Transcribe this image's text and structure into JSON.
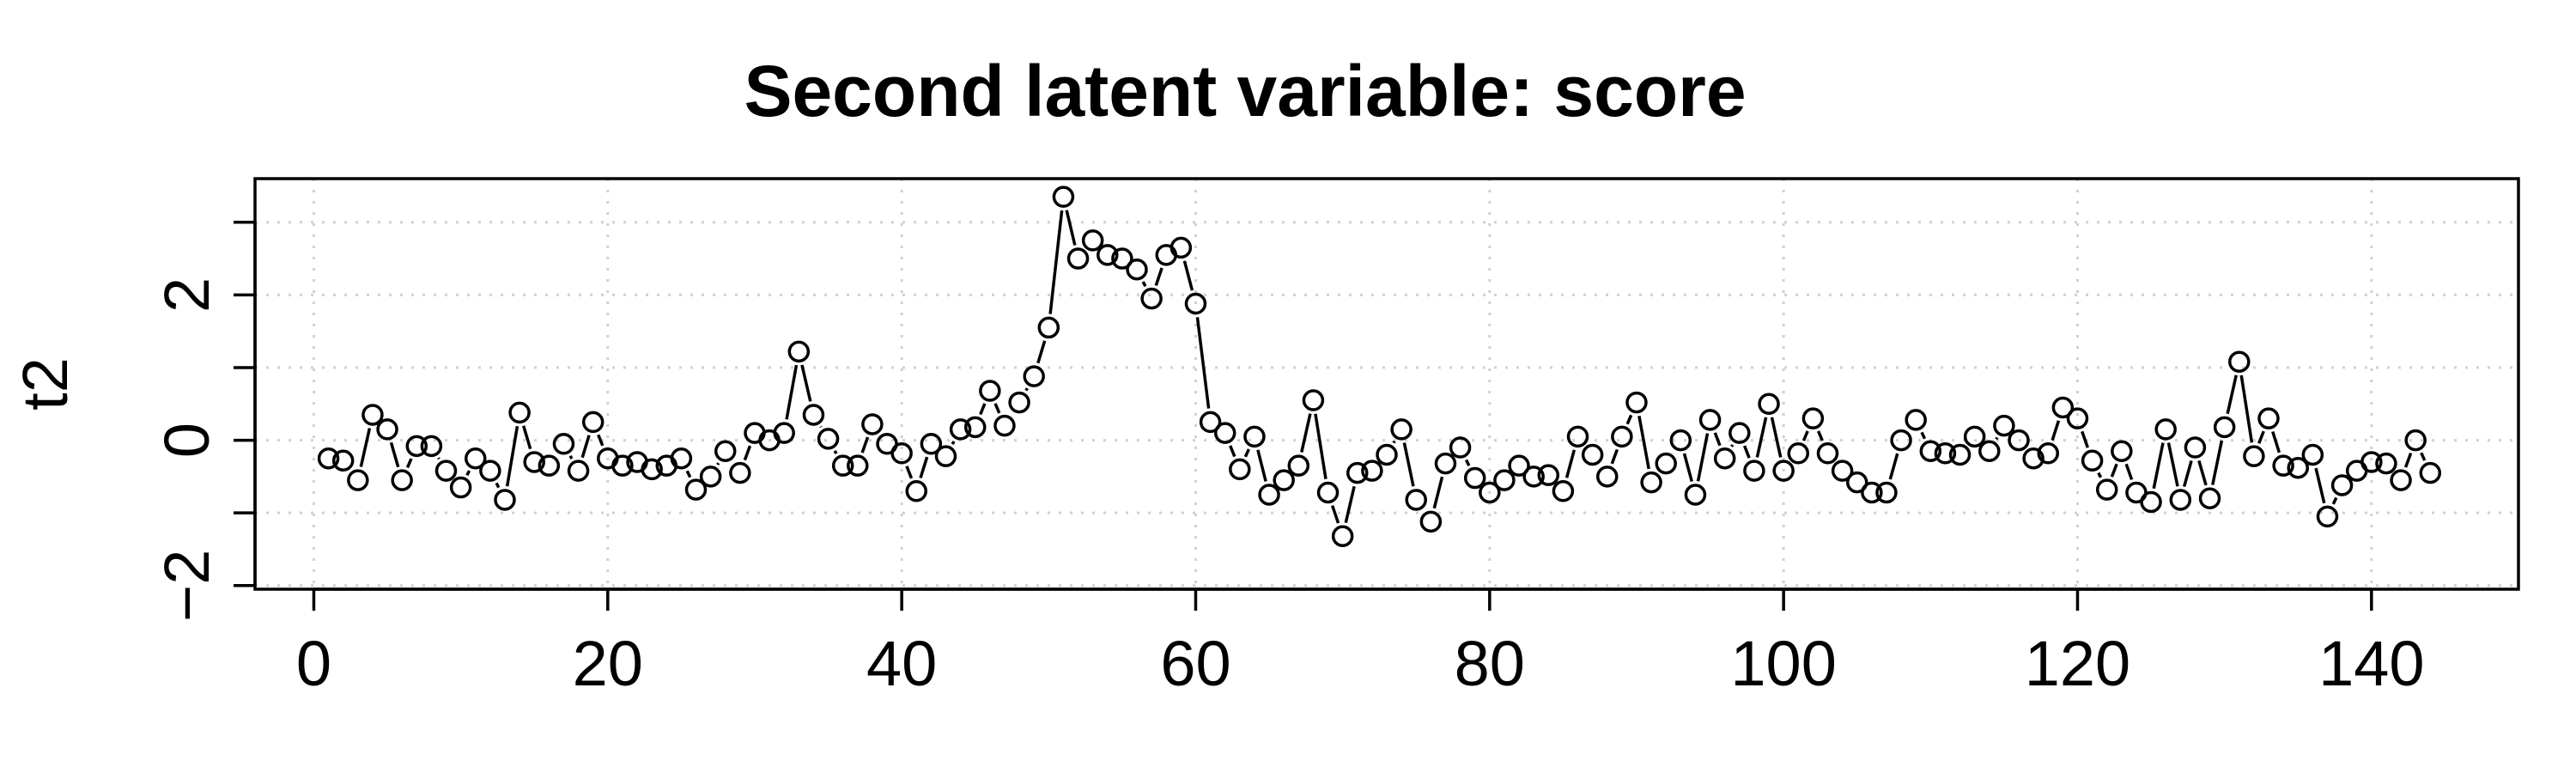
{
  "chart_data": {
    "type": "line",
    "style": "points with connecting line segments (type b)",
    "title": "Second latent variable: score",
    "xlabel": "",
    "ylabel": "t2",
    "xlim": [
      -4,
      150
    ],
    "ylim": [
      -2.05,
      3.6
    ],
    "x_ticks": [
      0,
      20,
      40,
      60,
      80,
      100,
      120,
      140
    ],
    "y_ticks": [
      -2,
      0,
      2
    ],
    "y_minor_ticks": [
      -2,
      -1,
      0,
      1,
      2,
      3
    ],
    "grid": true,
    "series": [
      {
        "values": [
          -0.25,
          -0.28,
          -0.55,
          0.35,
          0.15,
          -0.55,
          -0.08,
          -0.08,
          -0.42,
          -0.65,
          -0.25,
          -0.42,
          -0.82,
          0.38,
          -0.3,
          -0.35,
          -0.05,
          -0.42,
          0.25,
          -0.25,
          -0.35,
          -0.3,
          -0.4,
          -0.35,
          -0.25,
          -0.68,
          -0.5,
          -0.15,
          -0.45,
          0.1,
          0.0,
          0.1,
          1.22,
          0.35,
          0.02,
          -0.35,
          -0.35,
          0.22,
          -0.05,
          -0.18,
          -0.7,
          -0.05,
          -0.22,
          0.15,
          0.18,
          0.68,
          0.2,
          0.52,
          0.88,
          1.55,
          3.35,
          2.5,
          2.75,
          2.55,
          2.5,
          2.35,
          1.95,
          2.55,
          2.65,
          1.88,
          0.25,
          0.1,
          -0.4,
          0.05,
          -0.75,
          -0.55,
          -0.35,
          0.55,
          -0.72,
          -1.32,
          -0.45,
          -0.42,
          -0.2,
          0.15,
          -0.82,
          -1.12,
          -0.32,
          -0.1,
          -0.52,
          -0.72,
          -0.55,
          -0.35,
          -0.5,
          -0.48,
          -0.7,
          0.05,
          -0.2,
          -0.5,
          0.05,
          0.52,
          -0.58,
          -0.32,
          0.0,
          -0.75,
          0.28,
          -0.25,
          0.1,
          -0.42,
          0.5,
          -0.42,
          -0.18,
          0.3,
          -0.18,
          -0.42,
          -0.58,
          -0.72,
          -0.72,
          0.0,
          0.28,
          -0.15,
          -0.18,
          -0.2,
          0.05,
          -0.15,
          0.2,
          0.0,
          -0.25,
          -0.18,
          0.45,
          0.3,
          -0.28,
          -0.68,
          -0.15,
          -0.72,
          -0.85,
          0.15,
          -0.82,
          -0.1,
          -0.8,
          0.18,
          1.08,
          -0.22,
          0.3,
          -0.35,
          -0.38,
          -0.2,
          -1.05,
          -0.62,
          -0.42,
          -0.3,
          -0.32,
          -0.55,
          0.0,
          -0.45
        ]
      }
    ]
  }
}
